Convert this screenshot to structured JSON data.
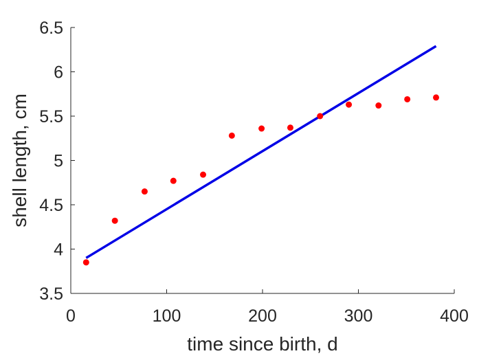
{
  "chart_data": {
    "type": "scatter",
    "title": "",
    "xlabel": "time since birth, d",
    "ylabel": "shell length, cm",
    "xlim": [
      0,
      400
    ],
    "ylim": [
      3.5,
      6.5
    ],
    "xticks": [
      0,
      100,
      200,
      300,
      400
    ],
    "yticks": [
      3.5,
      4,
      4.5,
      5,
      5.5,
      6,
      6.5
    ],
    "xtick_labels": [
      "0",
      "100",
      "200",
      "300",
      "400"
    ],
    "ytick_labels": [
      "3.5",
      "4",
      "4.5",
      "5",
      "5.5",
      "6",
      "6.5"
    ],
    "grid": false,
    "legend": "none",
    "series": [
      {
        "kind": "scatter",
        "color": "#ff0000",
        "points": [
          {
            "x": 16,
            "y": 3.85
          },
          {
            "x": 46,
            "y": 4.32
          },
          {
            "x": 77,
            "y": 4.65
          },
          {
            "x": 107,
            "y": 4.77
          },
          {
            "x": 138,
            "y": 4.84
          },
          {
            "x": 168,
            "y": 5.28
          },
          {
            "x": 199,
            "y": 5.36
          },
          {
            "x": 229,
            "y": 5.37
          },
          {
            "x": 260,
            "y": 5.5
          },
          {
            "x": 290,
            "y": 5.63
          },
          {
            "x": 321,
            "y": 5.62
          },
          {
            "x": 351,
            "y": 5.69
          },
          {
            "x": 381,
            "y": 5.71
          }
        ]
      },
      {
        "kind": "line",
        "color": "#0000e6",
        "points": [
          {
            "x": 16,
            "y": 3.9
          },
          {
            "x": 381,
            "y": 6.29
          }
        ]
      }
    ]
  }
}
